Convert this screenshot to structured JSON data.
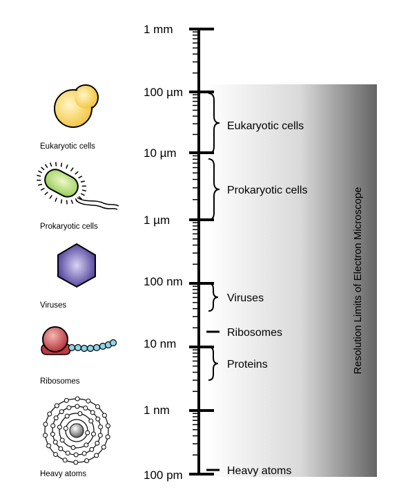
{
  "scale_labels": {
    "mm1": "1 mm",
    "um100": "100 µm",
    "um10": "10 µm",
    "um1": "1 µm",
    "nm100": "100 nm",
    "nm10": "10 nm",
    "nm1": "1 nm",
    "pm100": "100 pm"
  },
  "categories": {
    "eukaryotic": "Eukaryotic cells",
    "prokaryotic": "Prokaryotic cells",
    "viruses": "Viruses",
    "ribosomes": "Ribosomes",
    "proteins": "Proteins",
    "heavy_atoms": "Heavy atoms"
  },
  "icons": {
    "eukaryotic": "Eukaryotic cells",
    "prokaryotic": "Prokaryotic cells",
    "viruses": "Viruses",
    "ribosomes": "Ribosomes",
    "heavy_atoms": "Heavy atoms"
  },
  "resolution_label": "Resolution Limits of Electron Microscope",
  "colors": {
    "eukaryote_fill": "#f6c94a",
    "prokaryote_fill": "#a8d85a",
    "virus_fill": "#4a3c9c",
    "ribosome_fill": "#c0393f",
    "bead_fill": "#8fd3e8",
    "gradient_dark": "#666666"
  }
}
